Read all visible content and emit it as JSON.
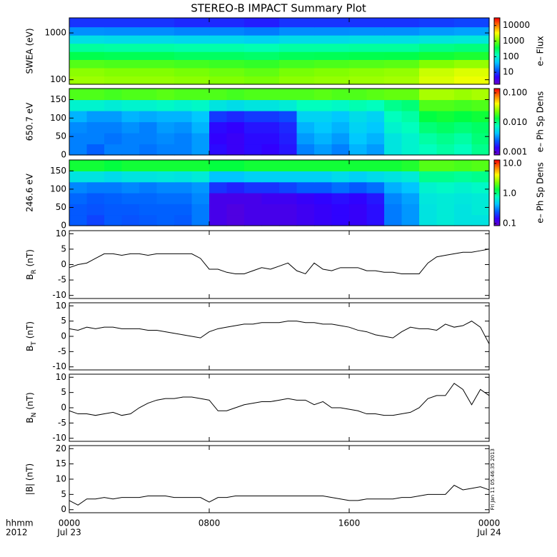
{
  "title": "STEREO-B IMPACT Summary Plot",
  "timestamp": "Fri Jan 11 05:46:35 2013",
  "x_axis": {
    "xlim": [
      0,
      24
    ],
    "xticks": [
      {
        "value": 0,
        "label": "0000"
      },
      {
        "value": 8,
        "label": "0800"
      },
      {
        "value": 16,
        "label": "1600"
      },
      {
        "value": 24,
        "label": "0000"
      }
    ],
    "date_labels": [
      {
        "value": 0,
        "label": "Jul 23"
      },
      {
        "value": 24,
        "label": "Jul 24"
      }
    ],
    "format_label": "hhmm",
    "year_label": "2012"
  },
  "chart_data": [
    {
      "type": "heatmap",
      "y_label": "SWEA (eV)",
      "ylog": true,
      "ylim": [
        80,
        2100
      ],
      "yticks": [
        100,
        1000
      ],
      "xbins": [
        0,
        2,
        4,
        6,
        8,
        10,
        12,
        14,
        16,
        18,
        20,
        22,
        24
      ],
      "ybins": [
        80,
        120,
        180,
        270,
        400,
        600,
        900,
        1350,
        2100
      ],
      "z": [
        [
          1500,
          1400,
          1400,
          1300,
          1200,
          1100,
          1300,
          1400,
          1500,
          1600,
          2500,
          3000
        ],
        [
          1300,
          1200,
          1200,
          1100,
          1000,
          900,
          1100,
          1200,
          1300,
          1400,
          2200,
          2600
        ],
        [
          800,
          750,
          750,
          700,
          650,
          600,
          700,
          750,
          800,
          850,
          1200,
          1400
        ],
        [
          350,
          330,
          330,
          300,
          300,
          280,
          320,
          330,
          350,
          360,
          450,
          500
        ],
        [
          180,
          170,
          170,
          160,
          160,
          150,
          170,
          170,
          180,
          180,
          220,
          240
        ],
        [
          70,
          65,
          65,
          60,
          60,
          55,
          65,
          65,
          70,
          70,
          80,
          85
        ],
        [
          25,
          24,
          24,
          22,
          22,
          20,
          24,
          24,
          25,
          25,
          28,
          30
        ],
        [
          9,
          9,
          9,
          8,
          8,
          7,
          9,
          9,
          9,
          9,
          10,
          11
        ]
      ],
      "colorbar_label": "e– Flux",
      "zlog": true,
      "zlim": [
        1.7,
        31000
      ],
      "zticks": [
        10,
        100,
        1000,
        10000
      ],
      "colormap": [
        "#6a00c8",
        "#3000ff",
        "#0060ff",
        "#00c8ff",
        "#00ffc0",
        "#00ff40",
        "#80ff00",
        "#ffff00",
        "#ff8000",
        "#ff0000"
      ]
    },
    {
      "type": "heatmap",
      "y_label": "650.7 eV",
      "ylog": false,
      "ylim": [
        0,
        180
      ],
      "yticks": [
        0,
        50,
        100,
        150
      ],
      "xbins": [
        0,
        1,
        2,
        3,
        4,
        5,
        6,
        7,
        8,
        9,
        10,
        11,
        12,
        13,
        14,
        15,
        16,
        17,
        18,
        19,
        20,
        21,
        22,
        23,
        24
      ],
      "ybins": [
        0,
        30,
        60,
        90,
        120,
        150,
        180
      ],
      "z": [
        [
          0.003,
          0.0025,
          0.003,
          0.003,
          0.0028,
          0.003,
          0.003,
          0.0035,
          0.0015,
          0.0013,
          0.0015,
          0.0014,
          0.0016,
          0.003,
          0.0035,
          0.003,
          0.004,
          0.0035,
          0.006,
          0.007,
          0.008,
          0.009,
          0.008,
          0.01
        ],
        [
          0.003,
          0.003,
          0.0028,
          0.003,
          0.003,
          0.0032,
          0.003,
          0.0035,
          0.0014,
          0.0013,
          0.0015,
          0.0015,
          0.0017,
          0.0035,
          0.004,
          0.0035,
          0.0045,
          0.004,
          0.006,
          0.007,
          0.009,
          0.01,
          0.009,
          0.011
        ],
        [
          0.0032,
          0.003,
          0.003,
          0.0033,
          0.003,
          0.0035,
          0.0033,
          0.004,
          0.0015,
          0.0014,
          0.0016,
          0.0016,
          0.0018,
          0.004,
          0.0045,
          0.004,
          0.005,
          0.0045,
          0.007,
          0.008,
          0.011,
          0.012,
          0.011,
          0.012
        ],
        [
          0.004,
          0.0035,
          0.0035,
          0.004,
          0.0038,
          0.004,
          0.004,
          0.0045,
          0.002,
          0.0018,
          0.002,
          0.002,
          0.0022,
          0.005,
          0.005,
          0.0045,
          0.0055,
          0.005,
          0.008,
          0.009,
          0.014,
          0.015,
          0.014,
          0.015
        ],
        [
          0.007,
          0.007,
          0.0065,
          0.007,
          0.007,
          0.0075,
          0.007,
          0.0075,
          0.006,
          0.0055,
          0.006,
          0.006,
          0.0065,
          0.008,
          0.008,
          0.0075,
          0.0085,
          0.008,
          0.01,
          0.011,
          0.02,
          0.02,
          0.019,
          0.02
        ],
        [
          0.02,
          0.02,
          0.019,
          0.02,
          0.02,
          0.021,
          0.02,
          0.02,
          0.02,
          0.019,
          0.02,
          0.02,
          0.02,
          0.02,
          0.021,
          0.02,
          0.02,
          0.021,
          0.022,
          0.022,
          0.03,
          0.03,
          0.028,
          0.03
        ]
      ],
      "colorbar_label": "e– Ph Sp Dens",
      "zlog": true,
      "zlim": [
        0.0008,
        0.14
      ],
      "zticks": [
        0.001,
        {
          "value": 0.01,
          "label": "0.010"
        },
        {
          "value": 0.1,
          "label": "0.100"
        }
      ],
      "colormap": [
        "#6a00c8",
        "#3000ff",
        "#0060ff",
        "#00c8ff",
        "#00ffc0",
        "#00ff40",
        "#80ff00",
        "#ffff00",
        "#ff8000",
        "#ff0000"
      ]
    },
    {
      "type": "heatmap",
      "y_label": "246.6 eV",
      "ylog": false,
      "ylim": [
        0,
        180
      ],
      "yticks": [
        0,
        50,
        100,
        150
      ],
      "xbins": [
        0,
        1,
        2,
        3,
        4,
        5,
        6,
        7,
        8,
        9,
        10,
        11,
        12,
        13,
        14,
        15,
        16,
        17,
        18,
        19,
        20,
        21,
        22,
        23,
        24
      ],
      "ybins": [
        0,
        30,
        60,
        90,
        120,
        150,
        180
      ],
      "z": [
        [
          0.25,
          0.22,
          0.25,
          0.24,
          0.25,
          0.26,
          0.25,
          0.3,
          0.12,
          0.11,
          0.12,
          0.12,
          0.12,
          0.13,
          0.14,
          0.15,
          0.14,
          0.16,
          0.3,
          0.35,
          0.6,
          0.65,
          0.6,
          0.6
        ],
        [
          0.25,
          0.24,
          0.25,
          0.25,
          0.26,
          0.26,
          0.26,
          0.3,
          0.12,
          0.11,
          0.12,
          0.12,
          0.12,
          0.13,
          0.14,
          0.15,
          0.14,
          0.16,
          0.3,
          0.35,
          0.6,
          0.65,
          0.6,
          0.65
        ],
        [
          0.27,
          0.25,
          0.26,
          0.27,
          0.27,
          0.28,
          0.28,
          0.32,
          0.12,
          0.12,
          0.12,
          0.13,
          0.13,
          0.14,
          0.15,
          0.16,
          0.15,
          0.17,
          0.32,
          0.37,
          0.62,
          0.65,
          0.62,
          0.65
        ],
        [
          0.32,
          0.3,
          0.3,
          0.32,
          0.3,
          0.32,
          0.32,
          0.35,
          0.2,
          0.18,
          0.2,
          0.2,
          0.22,
          0.25,
          0.25,
          0.28,
          0.25,
          0.28,
          0.4,
          0.45,
          0.7,
          0.75,
          0.7,
          0.75
        ],
        [
          0.6,
          0.6,
          0.55,
          0.6,
          0.6,
          0.62,
          0.6,
          0.65,
          0.45,
          0.45,
          0.5,
          0.5,
          0.5,
          0.5,
          0.5,
          0.55,
          0.5,
          0.55,
          0.6,
          0.65,
          1.0,
          1.0,
          0.95,
          1.0
        ],
        [
          1.5,
          1.5,
          1.4,
          1.5,
          1.5,
          1.5,
          1.5,
          1.5,
          1.4,
          1.4,
          1.5,
          1.5,
          1.5,
          1.5,
          1.5,
          1.5,
          1.5,
          1.5,
          1.5,
          1.6,
          2,
          2,
          1.9,
          2
        ]
      ],
      "colorbar_label": "e– Ph Sp Dens",
      "zlog": true,
      "zlim": [
        0.085,
        13
      ],
      "zticks": [
        0.1,
        {
          "value": 1,
          "label": "1.0"
        },
        {
          "value": 10,
          "label": "10.0"
        }
      ],
      "colormap": [
        "#6a00c8",
        "#3000ff",
        "#0060ff",
        "#00c8ff",
        "#00ffc0",
        "#00ff40",
        "#80ff00",
        "#ffff00",
        "#ff8000",
        "#ff0000"
      ]
    },
    {
      "type": "line",
      "y_label": {
        "base": "B",
        "sub": "R",
        "unit": "(nT)"
      },
      "ylim": [
        -11,
        11
      ],
      "yticks": [
        -10,
        -5,
        0,
        5,
        10
      ],
      "color": "#000000",
      "x": [
        0,
        0.5,
        1,
        1.5,
        2,
        2.5,
        3,
        3.5,
        4,
        4.5,
        5,
        5.5,
        6,
        6.5,
        7,
        7.5,
        8,
        8.5,
        9,
        9.5,
        10,
        10.5,
        11,
        11.5,
        12,
        12.5,
        13,
        13.5,
        14,
        14.5,
        15,
        15.5,
        16,
        16.5,
        17,
        17.5,
        18,
        18.5,
        19,
        19.5,
        20,
        20.5,
        21,
        21.5,
        22,
        22.5,
        23,
        23.5,
        24
      ],
      "values": [
        -1,
        0,
        0.5,
        2,
        3.5,
        3.5,
        3,
        3.5,
        3.5,
        3,
        3.5,
        3.5,
        3.5,
        3.5,
        3.5,
        2,
        -1.5,
        -1.5,
        -2.5,
        -3,
        -3,
        -2,
        -1,
        -1.5,
        -0.5,
        0.5,
        -2,
        -3,
        0.5,
        -1.5,
        -2,
        -1,
        -1,
        -1,
        -2,
        -2,
        -2.5,
        -2.5,
        -3,
        -3,
        -3,
        0.5,
        2.5,
        3,
        3.5,
        4,
        4,
        4.5,
        5
      ]
    },
    {
      "type": "line",
      "y_label": {
        "base": "B",
        "sub": "T",
        "unit": "(nT)"
      },
      "ylim": [
        -11,
        11
      ],
      "yticks": [
        -10,
        -5,
        0,
        5,
        10
      ],
      "color": "#000000",
      "x": [
        0,
        0.5,
        1,
        1.5,
        2,
        2.5,
        3,
        3.5,
        4,
        4.5,
        5,
        5.5,
        6,
        6.5,
        7,
        7.5,
        8,
        8.5,
        9,
        9.5,
        10,
        10.5,
        11,
        11.5,
        12,
        12.5,
        13,
        13.5,
        14,
        14.5,
        15,
        15.5,
        16,
        16.5,
        17,
        17.5,
        18,
        18.5,
        19,
        19.5,
        20,
        20.5,
        21,
        21.5,
        22,
        22.5,
        23,
        23.5,
        24
      ],
      "values": [
        2.5,
        2,
        3,
        2.5,
        3,
        3,
        2.5,
        2.5,
        2.5,
        2,
        2,
        1.5,
        1,
        0.5,
        0,
        -0.5,
        1.5,
        2.5,
        3,
        3.5,
        4,
        4,
        4.5,
        4.5,
        4.5,
        5,
        5,
        4.5,
        4.5,
        4,
        4,
        3.5,
        3,
        2,
        1.5,
        0.5,
        0,
        -0.5,
        1.5,
        3,
        2.5,
        2.5,
        2,
        4,
        3,
        3.5,
        5,
        3,
        -2.5
      ]
    },
    {
      "type": "line",
      "y_label": {
        "base": "B",
        "sub": "N",
        "unit": "(nT)"
      },
      "ylim": [
        -11,
        11
      ],
      "yticks": [
        -10,
        -5,
        0,
        5,
        10
      ],
      "color": "#000000",
      "x": [
        0,
        0.5,
        1,
        1.5,
        2,
        2.5,
        3,
        3.5,
        4,
        4.5,
        5,
        5.5,
        6,
        6.5,
        7,
        7.5,
        8,
        8.5,
        9,
        9.5,
        10,
        10.5,
        11,
        11.5,
        12,
        12.5,
        13,
        13.5,
        14,
        14.5,
        15,
        15.5,
        16,
        16.5,
        17,
        17.5,
        18,
        18.5,
        19,
        19.5,
        20,
        20.5,
        21,
        21.5,
        22,
        22.5,
        23,
        23.5,
        24
      ],
      "values": [
        -1,
        -2,
        -2,
        -2.5,
        -2,
        -1.5,
        -2.5,
        -2,
        0,
        1.5,
        2.5,
        3,
        3,
        3.5,
        3.5,
        3,
        2.5,
        -1,
        -1,
        0,
        1,
        1.5,
        2,
        2,
        2.5,
        3,
        2.5,
        2.5,
        1,
        2,
        0,
        0,
        -0.5,
        -1,
        -2,
        -2,
        -2.5,
        -2.5,
        -2,
        -1.5,
        0,
        3,
        4,
        4,
        8,
        6,
        1,
        6,
        4
      ]
    },
    {
      "type": "line",
      "y_label": "|B| (nT)",
      "ylim": [
        -1,
        21
      ],
      "yticks": [
        0,
        5,
        10,
        15,
        20
      ],
      "color": "#000000",
      "x": [
        0,
        0.5,
        1,
        1.5,
        2,
        2.5,
        3,
        3.5,
        4,
        4.5,
        5,
        5.5,
        6,
        6.5,
        7,
        7.5,
        8,
        8.5,
        9,
        9.5,
        10,
        10.5,
        11,
        11.5,
        12,
        12.5,
        13,
        13.5,
        14,
        14.5,
        15,
        15.5,
        16,
        16.5,
        17,
        17.5,
        18,
        18.5,
        19,
        19.5,
        20,
        20.5,
        21,
        21.5,
        22,
        22.5,
        23,
        23.5,
        24
      ],
      "values": [
        3,
        1.5,
        3.5,
        3.5,
        4,
        3.5,
        4,
        4,
        4,
        4.5,
        4.5,
        4.5,
        4,
        4,
        4,
        4,
        2.5,
        4,
        4,
        4.5,
        4.5,
        4.5,
        4.5,
        4.5,
        4.5,
        4.5,
        4.5,
        4.5,
        4.5,
        4.5,
        4,
        3.5,
        3,
        3,
        3.5,
        3.5,
        3.5,
        3.5,
        4,
        4,
        4.5,
        5,
        5,
        5,
        8,
        6.5,
        7,
        7.5,
        6.5
      ]
    }
  ]
}
